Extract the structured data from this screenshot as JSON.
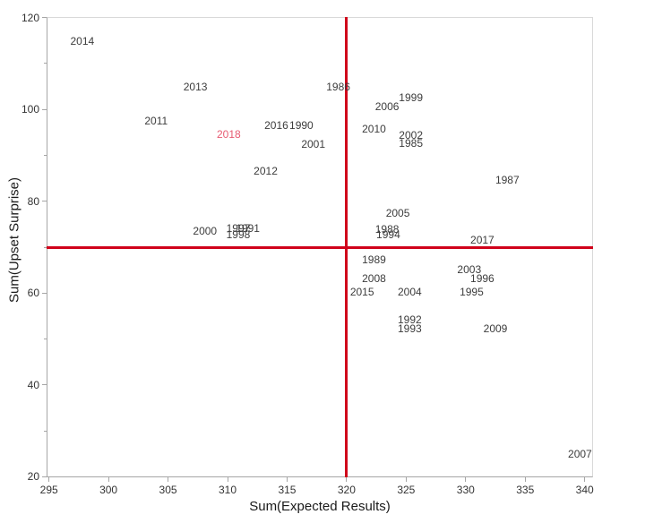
{
  "chart_data": {
    "type": "scatter",
    "title": "",
    "xlabel": "Sum(Expected Results)",
    "ylabel": "Sum(Upset Surprise)",
    "xlim": [
      294.8,
      340.7
    ],
    "ylim": [
      19.9,
      120.1
    ],
    "grid": false,
    "legend": "none",
    "marker_style": "text-label",
    "x_ticks": [
      295,
      300,
      305,
      310,
      315,
      320,
      325,
      330,
      335,
      340
    ],
    "y_ticks": [
      20,
      40,
      60,
      80,
      100,
      120
    ],
    "y_minor_ticks": [
      30,
      50,
      70,
      90,
      110
    ],
    "reference_lines": [
      {
        "axis": "x",
        "value": 320,
        "color": "#d0021b"
      },
      {
        "axis": "y",
        "value": 70,
        "color": "#d0021b"
      }
    ],
    "colors": {
      "point_label": "#3c3c3c",
      "highlight_label": "#e75b72",
      "reference_line": "#d0021b",
      "axis_line": "#a6a6a6",
      "plot_border": "#d9d9d9"
    },
    "highlighted_points": [
      "2018"
    ],
    "points": [
      {
        "label": "2014",
        "x": 297.8,
        "y": 114.8
      },
      {
        "label": "2013",
        "x": 307.3,
        "y": 104.8
      },
      {
        "label": "2011",
        "x": 304.0,
        "y": 97.5
      },
      {
        "label": "2018",
        "x": 310.1,
        "y": 94.6
      },
      {
        "label": "2016",
        "x": 314.1,
        "y": 96.6
      },
      {
        "label": "1990",
        "x": 316.2,
        "y": 96.6
      },
      {
        "label": "2001",
        "x": 317.2,
        "y": 92.4
      },
      {
        "label": "2012",
        "x": 313.2,
        "y": 86.6
      },
      {
        "label": "2000",
        "x": 308.1,
        "y": 73.6
      },
      {
        "label": "1997",
        "x": 310.9,
        "y": 74.1
      },
      {
        "label": "1991",
        "x": 311.7,
        "y": 74.1
      },
      {
        "label": "1998",
        "x": 310.9,
        "y": 72.7
      },
      {
        "label": "1986",
        "x": 319.3,
        "y": 104.9
      },
      {
        "label": "1999",
        "x": 325.4,
        "y": 102.6
      },
      {
        "label": "2006",
        "x": 323.4,
        "y": 100.7
      },
      {
        "label": "2010",
        "x": 322.3,
        "y": 95.8
      },
      {
        "label": "2002",
        "x": 325.4,
        "y": 94.4
      },
      {
        "label": "1985",
        "x": 325.4,
        "y": 92.6
      },
      {
        "label": "1987",
        "x": 333.5,
        "y": 84.7
      },
      {
        "label": "2005",
        "x": 324.3,
        "y": 77.4
      },
      {
        "label": "1988",
        "x": 323.4,
        "y": 73.9
      },
      {
        "label": "1994",
        "x": 323.5,
        "y": 72.8
      },
      {
        "label": "2017",
        "x": 331.4,
        "y": 71.6
      },
      {
        "label": "1989",
        "x": 322.3,
        "y": 67.2
      },
      {
        "label": "2003",
        "x": 330.3,
        "y": 65.1
      },
      {
        "label": "2008",
        "x": 322.3,
        "y": 63.2
      },
      {
        "label": "1996",
        "x": 331.4,
        "y": 63.2
      },
      {
        "label": "2015",
        "x": 321.3,
        "y": 60.2
      },
      {
        "label": "2004",
        "x": 325.3,
        "y": 60.2
      },
      {
        "label": "1995",
        "x": 330.5,
        "y": 60.2
      },
      {
        "label": "1992",
        "x": 325.3,
        "y": 54.2
      },
      {
        "label": "1993",
        "x": 325.3,
        "y": 52.2
      },
      {
        "label": "2009",
        "x": 332.5,
        "y": 52.2
      },
      {
        "label": "2007",
        "x": 339.6,
        "y": 25.0
      }
    ]
  }
}
